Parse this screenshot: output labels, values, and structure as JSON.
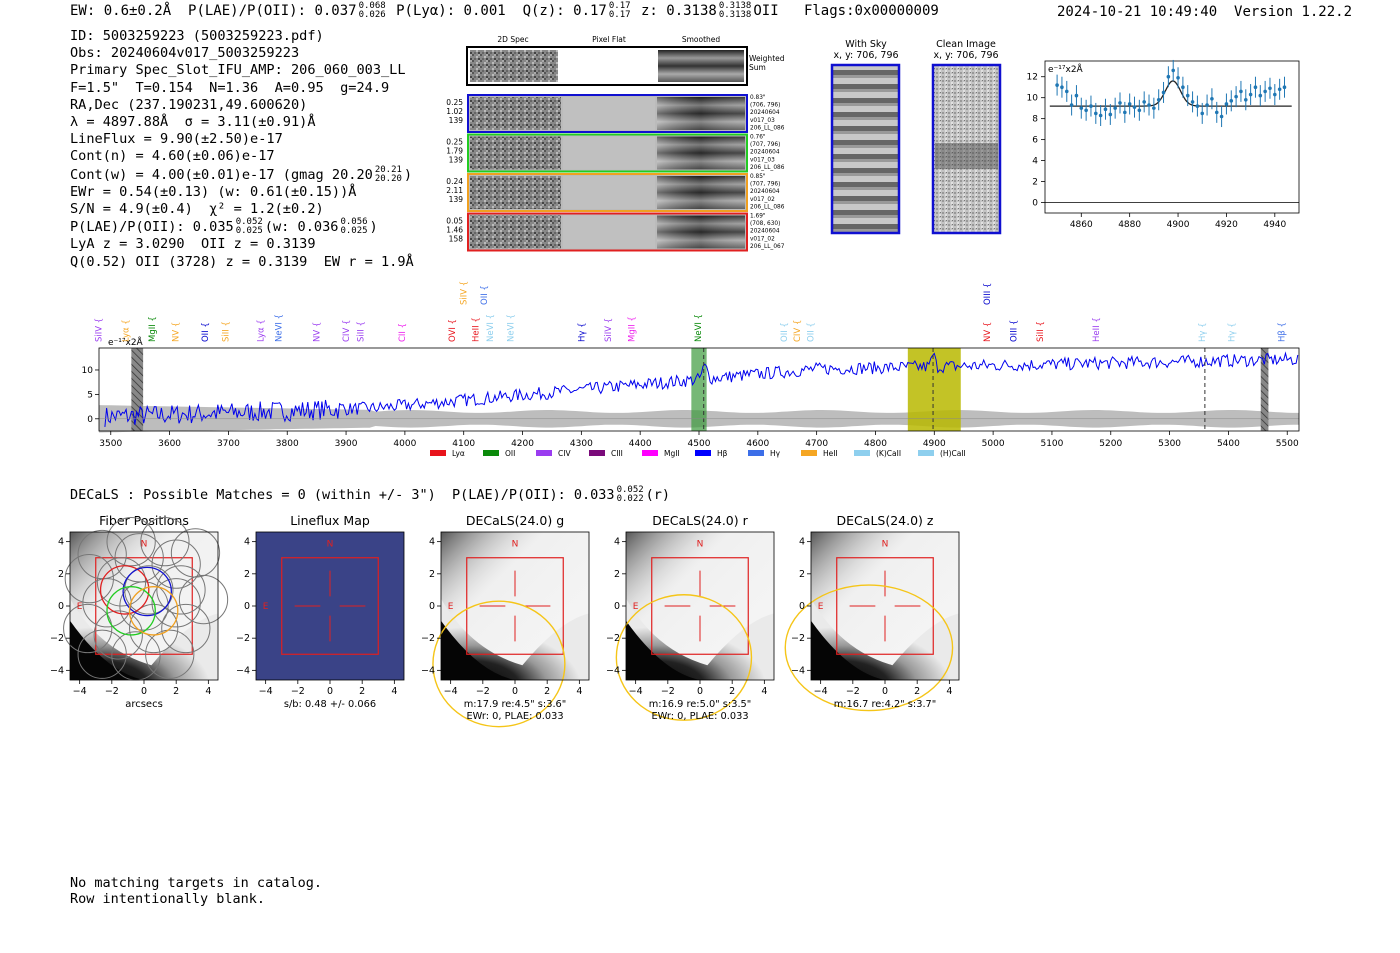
{
  "header": {
    "ew": "EW: 0.6±0.2Å",
    "plae_label": "P(LAE)/P(OII): 0.037",
    "plae_hi": "0.068",
    "plae_lo": "0.026",
    "plya": "P(Lyα): 0.001",
    "qz": "Q(z): 0.17",
    "qz_hi": "0.17",
    "qz_lo": "0.17",
    "z_label": "z: 0.3138",
    "z_hi": "0.3138",
    "z_lo": "0.3138",
    "z_line": "OII",
    "flags": "Flags:0x00000009",
    "datetime": "2024-10-21 10:49:40",
    "version": "Version 1.22.2"
  },
  "info": {
    "id": "ID: 5003259223 (5003259223.pdf)",
    "obs": "Obs: 20240604v017_5003259223",
    "primary": "Primary Spec_Slot_IFU_AMP: 206_060_003_LL",
    "params": "F=1.5\"  T=0.154  N=1.36  A=0.95  g=24.9",
    "radec": "RA,Dec (237.190231,49.600620)",
    "lambda": "λ = 4897.88Å  σ = 3.11(±0.91)Å",
    "lineflux": "LineFlux = 9.90(±2.50)e-17",
    "contn": "Cont(n) = 4.60(±0.06)e-17",
    "contw_pre": "Cont(w) = 4.00(±0.01)e-17 (gmag 20.20",
    "contw_hi": "20.21",
    "contw_lo": "20.20",
    "contw_post": ")",
    "ewr": "EWr = 0.54(±0.13) (w: 0.61(±0.15))Å",
    "sn": "S/N = 4.9(±0.4)  χ² = 1.2(±0.2)",
    "plae_pre": "P(LAE)/P(OII): 0.035",
    "plae_hi": "0.052",
    "plae_lo": "0.025",
    "plae_mid": "(w: 0.036",
    "plae_w_hi": "0.056",
    "plae_w_lo": "0.025",
    "plae_post": ")",
    "lya": "LyA z = 3.0290  OII z = 0.3139",
    "q": "Q(0.52) OII (3728) z = 0.3139  EW r = 1.9Å"
  },
  "cutouts": {
    "col_headers": [
      "2D Spec",
      "Pixel Flat",
      "Smoothed"
    ],
    "weighted_sum": [
      "Weighted",
      "Sum"
    ],
    "rows": [
      {
        "left": [
          "0.25",
          "1.02",
          "139"
        ],
        "right": [
          "0.83\"",
          "(706, 796)",
          "20240604",
          "v017_03",
          "206_LL_086"
        ],
        "color": "#1010d0"
      },
      {
        "left": [
          "0.25",
          "1.79",
          "139"
        ],
        "right": [
          "0.76\"",
          "(707, 796)",
          "20240604",
          "v017_03",
          "206_LL_086"
        ],
        "color": "#22cc22"
      },
      {
        "left": [
          "0.24",
          "2.11",
          "139"
        ],
        "right": [
          "0.85\"",
          "(707, 796)",
          "20240604",
          "v017_02",
          "206_LL_086"
        ],
        "color": "#f0a020"
      },
      {
        "left": [
          "0.05",
          "1.46",
          "158"
        ],
        "right": [
          "1.69\"",
          "(708, 630)",
          "20240604",
          "v017_02",
          "206_LL_067"
        ],
        "color": "#e02020"
      }
    ]
  },
  "sky": {
    "with_sky_title": "With Sky",
    "with_sky_xy": "x, y: 706, 796",
    "clean_title": "Clean Image",
    "clean_xy": "x, y: 706, 796"
  },
  "zoom_chart": {
    "unit_label": "e⁻¹⁷x2Å"
  },
  "chart_data": [
    {
      "type": "scatter",
      "name": "line-fit-zoom",
      "unit_label": "e⁻¹⁷x2Å",
      "xlim": [
        4845,
        4950
      ],
      "ylim": [
        -1,
        13.5
      ],
      "xticks": [
        4860,
        4880,
        4900,
        4920,
        4940
      ],
      "yticks": [
        0,
        2,
        4,
        6,
        8,
        10,
        12
      ],
      "x": [
        4850,
        4852,
        4854,
        4856,
        4858,
        4860,
        4862,
        4864,
        4866,
        4868,
        4870,
        4872,
        4874,
        4876,
        4878,
        4880,
        4882,
        4884,
        4886,
        4888,
        4890,
        4892,
        4894,
        4896,
        4898,
        4900,
        4902,
        4904,
        4906,
        4908,
        4910,
        4912,
        4914,
        4916,
        4918,
        4920,
        4922,
        4924,
        4926,
        4928,
        4930,
        4932,
        4934,
        4936,
        4938,
        4940,
        4942,
        4944
      ],
      "y": [
        11.2,
        11.0,
        10.6,
        9.3,
        10.2,
        9.0,
        8.8,
        9.2,
        8.5,
        8.3,
        8.9,
        8.4,
        9.0,
        9.5,
        8.6,
        9.4,
        9.1,
        8.8,
        9.6,
        9.3,
        9.0,
        9.8,
        10.5,
        12.0,
        12.6,
        11.9,
        11.0,
        10.2,
        9.6,
        9.2,
        8.5,
        9.3,
        9.9,
        8.6,
        8.2,
        9.4,
        9.7,
        10.1,
        10.6,
        9.8,
        10.3,
        11.0,
        10.2,
        10.6,
        10.9,
        10.3,
        10.8,
        11.0
      ],
      "fit_continuum": 9.2,
      "fit_peak": 11.6,
      "fit_center": 4897.88,
      "fit_sigma": 3.11,
      "grid": false
    },
    {
      "type": "line",
      "name": "full-spectrum",
      "unit_label": "e⁻¹⁷x2Å",
      "xlim": [
        3480,
        5520
      ],
      "ylim": [
        -2.5,
        14.5
      ],
      "xticks": [
        3500,
        3600,
        3700,
        3800,
        3900,
        4000,
        4100,
        4200,
        4300,
        4400,
        4500,
        4600,
        4700,
        4800,
        4900,
        5000,
        5100,
        5200,
        5300,
        5400,
        5500
      ],
      "yticks": [
        0,
        5,
        10
      ],
      "legend": [
        "Lyα",
        "OII",
        "CIV",
        "CIII",
        "MgII",
        "Hβ",
        "Hγ",
        "HeII",
        "(K)CaII",
        "(H)CaII"
      ],
      "legend_colors": [
        "#e8141c",
        "#0a8a0a",
        "#9a3cf0",
        "#7a0a7a",
        "#ff00ff",
        "#0000ff",
        "#3c6ee8",
        "#f5a623",
        "#8ecfee",
        "#8ecfee"
      ],
      "legend_placement": "bottom",
      "highlight_regions": [
        [
          4487,
          4513
        ],
        [
          4855,
          4945
        ]
      ],
      "highlight_colors": [
        "#3c9a3c",
        "#b8b800"
      ],
      "hatched_regions": [
        [
          3535,
          3555
        ],
        [
          5455,
          5468
        ]
      ],
      "dashed_lines": [
        4508,
        4897.88,
        5360
      ],
      "grid": false
    }
  ],
  "line_labels": [
    {
      "name": "SiIV",
      "x": 3484,
      "row": 0,
      "color": "#9a3cf0"
    },
    {
      "name": "Lyα",
      "x": 3530,
      "row": 0,
      "color": "#f5a623"
    },
    {
      "name": "MgII",
      "x": 3575,
      "row": 0,
      "color": "#0a8a0a"
    },
    {
      "name": "NV",
      "x": 3615,
      "row": 0,
      "color": "#f5a623"
    },
    {
      "name": "OII",
      "x": 3665,
      "row": 0,
      "color": "#0000cc"
    },
    {
      "name": "SiII",
      "x": 3700,
      "row": 0,
      "color": "#f5a623"
    },
    {
      "name": "Lyα",
      "x": 3760,
      "row": 0,
      "color": "#9a3cf0"
    },
    {
      "name": "NeVI",
      "x": 3790,
      "row": 0,
      "color": "#3c6ee8"
    },
    {
      "name": "NV",
      "x": 3855,
      "row": 0,
      "color": "#9a3cf0"
    },
    {
      "name": "CIV",
      "x": 3905,
      "row": 0,
      "color": "#9a3cf0"
    },
    {
      "name": "SiII",
      "x": 3930,
      "row": 0,
      "color": "#9a3cf0"
    },
    {
      "name": "CII",
      "x": 4000,
      "row": 0,
      "color": "#ee22ee"
    },
    {
      "name": "OVI",
      "x": 4085,
      "row": 0,
      "color": "#e8141c"
    },
    {
      "name": "HeII",
      "x": 4125,
      "row": 0,
      "color": "#e8141c"
    },
    {
      "name": "NeVI",
      "x": 4150,
      "row": 0,
      "color": "#8ecfee"
    },
    {
      "name": "NeVI",
      "x": 4185,
      "row": 0,
      "color": "#8ecfee"
    },
    {
      "name": "SiIV",
      "x": 4105,
      "row": 1,
      "color": "#f5a623"
    },
    {
      "name": "OII",
      "x": 4140,
      "row": 1,
      "color": "#3c6ee8"
    },
    {
      "name": "Hγ",
      "x": 4305,
      "row": 0,
      "color": "#0000cc"
    },
    {
      "name": "SiIV",
      "x": 4350,
      "row": 0,
      "color": "#9a3cf0"
    },
    {
      "name": "MgII",
      "x": 4390,
      "row": 0,
      "color": "#ee22ee"
    },
    {
      "name": "NeVI",
      "x": 4503,
      "row": 0,
      "color": "#0a8a0a"
    },
    {
      "name": "OII",
      "x": 4650,
      "row": 0,
      "color": "#8ecfee"
    },
    {
      "name": "CIV",
      "x": 4672,
      "row": 0,
      "color": "#f5a623"
    },
    {
      "name": "OII",
      "x": 4695,
      "row": 0,
      "color": "#8ecfee"
    },
    {
      "name": "NV",
      "x": 4995,
      "row": 0,
      "color": "#e8141c"
    },
    {
      "name": "OIII",
      "x": 5040,
      "row": 0,
      "color": "#0000cc"
    },
    {
      "name": "SiII",
      "x": 5085,
      "row": 0,
      "color": "#e8141c"
    },
    {
      "name": "OIII",
      "x": 4995,
      "row": 1,
      "color": "#0000cc"
    },
    {
      "name": "HeII",
      "x": 5180,
      "row": 0,
      "color": "#9a3cf0"
    },
    {
      "name": "Hγ",
      "x": 5360,
      "row": 0,
      "color": "#8ecfee"
    },
    {
      "name": "Hγ",
      "x": 5410,
      "row": 0,
      "color": "#8ecfee"
    },
    {
      "name": "Hβ",
      "x": 5495,
      "row": 0,
      "color": "#3c6ee8"
    }
  ],
  "decals": {
    "line_pre": "DECaLS : Possible Matches = 0 (within +/- 3\")  P(LAE)/P(OII): 0.033",
    "line_hi": "0.052",
    "line_lo": "0.022",
    "line_post": "(r)",
    "panels": [
      {
        "title": "Fiber Positions",
        "xlabel": "arcsecs",
        "sub1": "",
        "sub2": ""
      },
      {
        "title": "Lineflux Map",
        "xlabel": "",
        "sub1": "s/b: 0.48 +/- 0.066",
        "sub2": ""
      },
      {
        "title": "DECaLS(24.0) g",
        "xlabel": "",
        "sub1": "m:17.9  re:4.5\"  s:3.6\"",
        "sub2": "EWr: 0, PLAE: 0.033"
      },
      {
        "title": "DECaLS(24.0) r",
        "xlabel": "",
        "sub1": "m:16.9  re:5.0\"  s:3.5\"",
        "sub2": "EWr: 0, PLAE: 0.033"
      },
      {
        "title": "DECaLS(24.0) z",
        "xlabel": "",
        "sub1": "m:16.7  re:4.2\"  s:3.7\"",
        "sub2": ""
      }
    ],
    "tick_labels": [
      "−4",
      "−2",
      "0",
      "2",
      "4"
    ],
    "compass_n": "N",
    "compass_e": "E"
  },
  "footer": {
    "line1": "No matching targets in catalog.",
    "line2": "Row intentionally blank."
  }
}
